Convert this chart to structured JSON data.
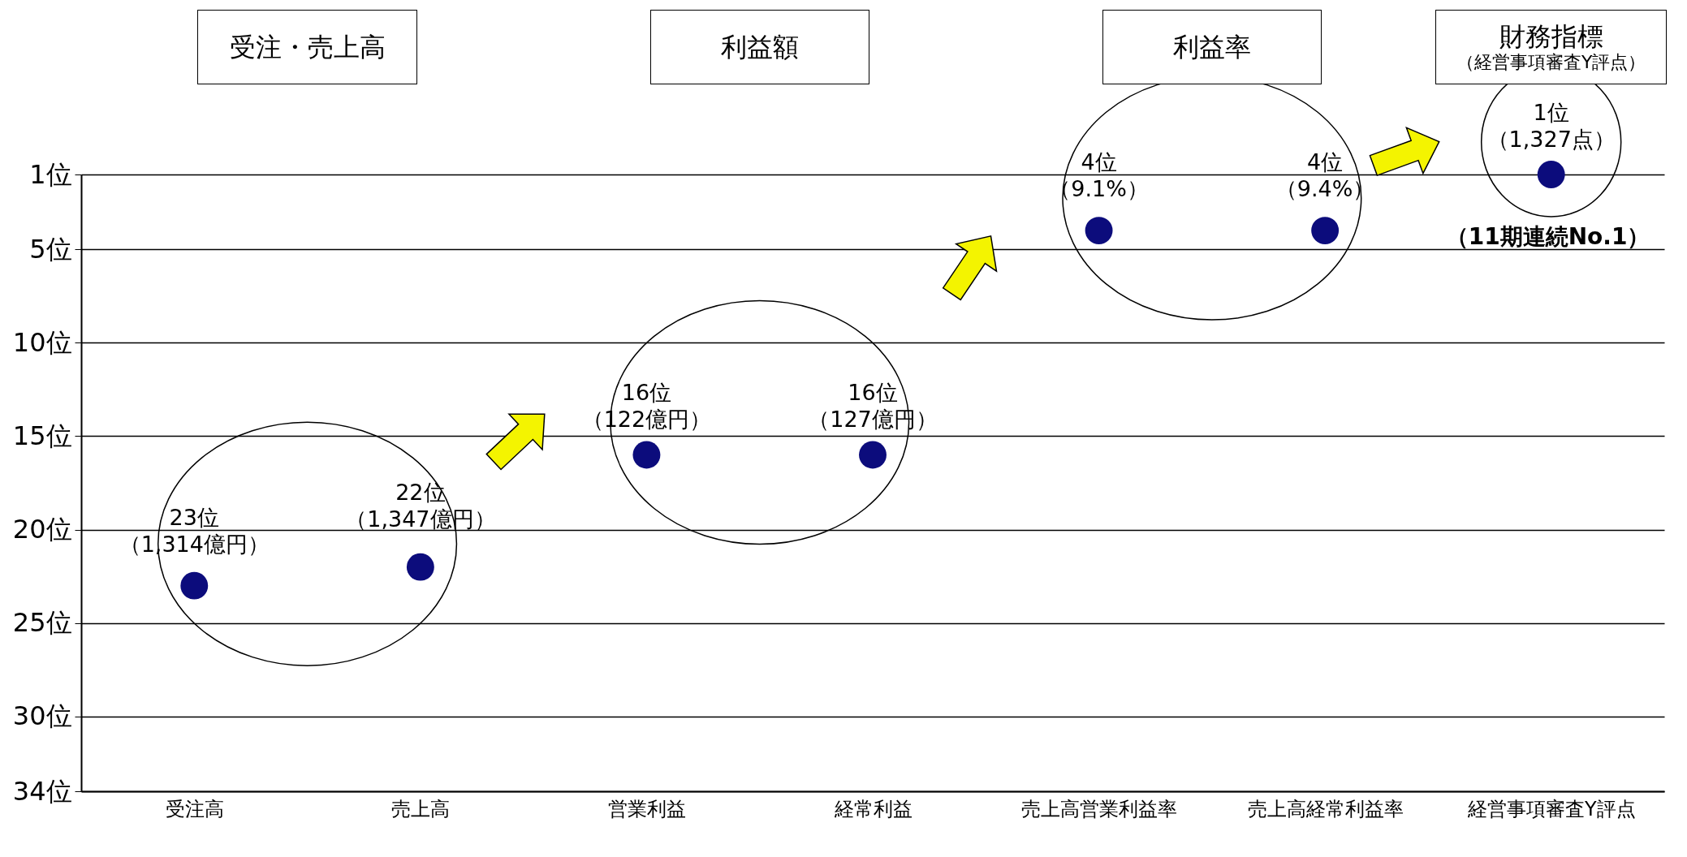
{
  "chart_data": {
    "type": "scatter",
    "annotations": [
      "受注・売上高",
      "利益額",
      "利益率",
      "財務指標（経営事項審査Y評点）",
      "（11期連続No.1）"
    ],
    "categories": [
      "受注高",
      "売上高",
      "営業利益",
      "経常利益",
      "売上高営業利益率",
      "売上高経常利益率",
      "経営事項審査Y評点"
    ],
    "values": [
      23,
      22,
      16,
      16,
      4,
      4,
      1
    ],
    "value_labels": [
      "23位（1,314億円）",
      "22位（1,347億円）",
      "16位（122億円）",
      "16位（127億円）",
      "4位（9.1%）",
      "4位（9.4%）",
      "1位（1,327点）"
    ],
    "color": "#0c0c7c",
    "marker": "circle",
    "ylim": [
      34,
      1
    ],
    "yticks": [
      {
        "value": 1,
        "label": "1位"
      },
      {
        "value": 5,
        "label": "5位"
      },
      {
        "value": 10,
        "label": "10位"
      },
      {
        "value": 15,
        "label": "15位"
      },
      {
        "value": 20,
        "label": "20位"
      },
      {
        "value": 25,
        "label": "25位"
      },
      {
        "value": 30,
        "label": "30位"
      },
      {
        "value": 34,
        "label": "34位"
      }
    ],
    "grid": "y"
  }
}
